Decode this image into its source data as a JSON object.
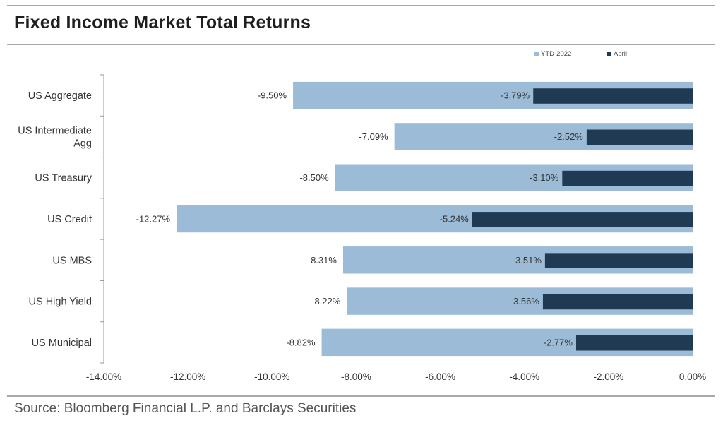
{
  "title": "Fixed Income Market Total Returns",
  "source": "Source: Bloomberg Financial L.P. and Barclays Securities",
  "colors": {
    "ytd": "#9bbbd6",
    "april": "#1f3a52"
  },
  "chart_data": {
    "type": "bar",
    "orientation": "horizontal",
    "categories": [
      "US Aggregate",
      "US Intermediate Agg",
      "US Treasury",
      "US Credit",
      "US MBS",
      "US High Yield",
      "US Municipal"
    ],
    "category_labels": [
      [
        "US Aggregate"
      ],
      [
        "US Intermediate",
        "Agg"
      ],
      [
        "US Treasury"
      ],
      [
        "US Credit"
      ],
      [
        "US MBS"
      ],
      [
        "US High Yield"
      ],
      [
        "US Municipal"
      ]
    ],
    "series": [
      {
        "name": "YTD-2022",
        "values": [
          -9.5,
          -7.09,
          -8.5,
          -12.27,
          -8.31,
          -8.22,
          -8.82
        ],
        "labels": [
          "-9.50%",
          "-7.09%",
          "-8.50%",
          "-12.27%",
          "-8.31%",
          "-8.22%",
          "-8.82%"
        ]
      },
      {
        "name": "April",
        "values": [
          -3.79,
          -2.52,
          -3.1,
          -5.24,
          -3.51,
          -3.56,
          -2.77
        ],
        "labels": [
          "-3.79%",
          "-2.52%",
          "-3.10%",
          "-5.24%",
          "-3.51%",
          "-3.56%",
          "-2.77%"
        ]
      }
    ],
    "xlim": [
      -14,
      0
    ],
    "xticks": [
      -14,
      -12,
      -10,
      -8,
      -6,
      -4,
      -2,
      0
    ],
    "xtick_labels": [
      "-14.00%",
      "-12.00%",
      "-10.00%",
      "-8.00%",
      "-6.00%",
      "-4.00%",
      "-2.00%",
      "0.00%"
    ],
    "legend_position": "top-right",
    "grid": false
  }
}
